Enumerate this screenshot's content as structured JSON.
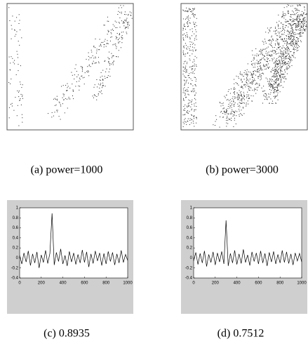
{
  "figures": [
    {
      "caption": "(a)  power=1000"
    },
    {
      "caption": "(b)  power=3000"
    }
  ],
  "chart_data": [
    {
      "type": "line",
      "caption": "(c)  0.8935",
      "x": [
        0,
        20,
        40,
        60,
        80,
        100,
        120,
        140,
        160,
        180,
        200,
        220,
        240,
        260,
        280,
        300,
        320,
        340,
        360,
        380,
        400,
        420,
        440,
        460,
        480,
        500,
        520,
        540,
        560,
        580,
        600,
        620,
        640,
        660,
        680,
        700,
        720,
        740,
        760,
        780,
        800,
        820,
        840,
        860,
        880,
        900,
        920,
        940,
        960,
        980,
        1000
      ],
      "series": [
        {
          "color": "#000000",
          "values": [
            0.05,
            -0.12,
            0.1,
            -0.08,
            0.14,
            -0.15,
            0.08,
            -0.1,
            0.12,
            -0.2,
            0.06,
            -0.09,
            0.15,
            -0.11,
            0.09,
            0.89,
            -0.14,
            0.11,
            -0.07,
            0.18,
            -0.12,
            0.05,
            -0.16,
            0.13,
            -0.08,
            0.1,
            -0.13,
            0.07,
            -0.1,
            0.16,
            -0.09,
            0.12,
            -0.18,
            0.08,
            -0.11,
            0.14,
            -0.06,
            0.1,
            -0.15,
            0.09,
            -0.12,
            0.13,
            -0.07,
            0.11,
            -0.14,
            0.08,
            -0.1,
            0.15,
            -0.09,
            0.07,
            -0.05
          ]
        }
      ],
      "xlim": [
        0,
        1000
      ],
      "ylim": [
        -0.4,
        1
      ],
      "xticks": [
        0,
        200,
        400,
        600,
        800,
        1000
      ],
      "yticks": [
        1,
        0.8,
        0.6,
        0.4,
        0.2,
        0,
        -0.2,
        -0.4
      ]
    },
    {
      "type": "line",
      "caption": "(d)  0.7512",
      "x": [
        0,
        20,
        40,
        60,
        80,
        100,
        120,
        140,
        160,
        180,
        200,
        220,
        240,
        260,
        280,
        300,
        320,
        340,
        360,
        380,
        400,
        420,
        440,
        460,
        480,
        500,
        520,
        540,
        560,
        580,
        600,
        620,
        640,
        660,
        680,
        700,
        720,
        740,
        760,
        780,
        800,
        820,
        840,
        860,
        880,
        900,
        920,
        940,
        960,
        980,
        1000
      ],
      "series": [
        {
          "color": "#000000",
          "values": [
            -0.06,
            0.11,
            -0.13,
            0.09,
            -0.1,
            0.14,
            -0.17,
            0.07,
            -0.09,
            0.12,
            -0.14,
            0.1,
            -0.08,
            0.13,
            -0.12,
            0.75,
            -0.16,
            0.09,
            -0.1,
            0.15,
            -0.13,
            0.08,
            -0.11,
            0.17,
            -0.09,
            0.06,
            -0.15,
            0.12,
            -0.07,
            0.1,
            -0.12,
            0.14,
            -0.1,
            0.09,
            -0.16,
            0.11,
            -0.08,
            0.13,
            -0.12,
            0.07,
            -0.1,
            0.15,
            -0.09,
            0.12,
            -0.11,
            0.08,
            -0.14,
            0.1,
            -0.06,
            0.09,
            -0.08
          ]
        }
      ],
      "xlim": [
        0,
        1000
      ],
      "ylim": [
        -0.4,
        1
      ],
      "xticks": [
        0,
        200,
        400,
        600,
        800,
        1000
      ],
      "yticks": [
        1,
        0.8,
        0.6,
        0.4,
        0.2,
        0,
        -0.2,
        -0.4
      ]
    }
  ]
}
